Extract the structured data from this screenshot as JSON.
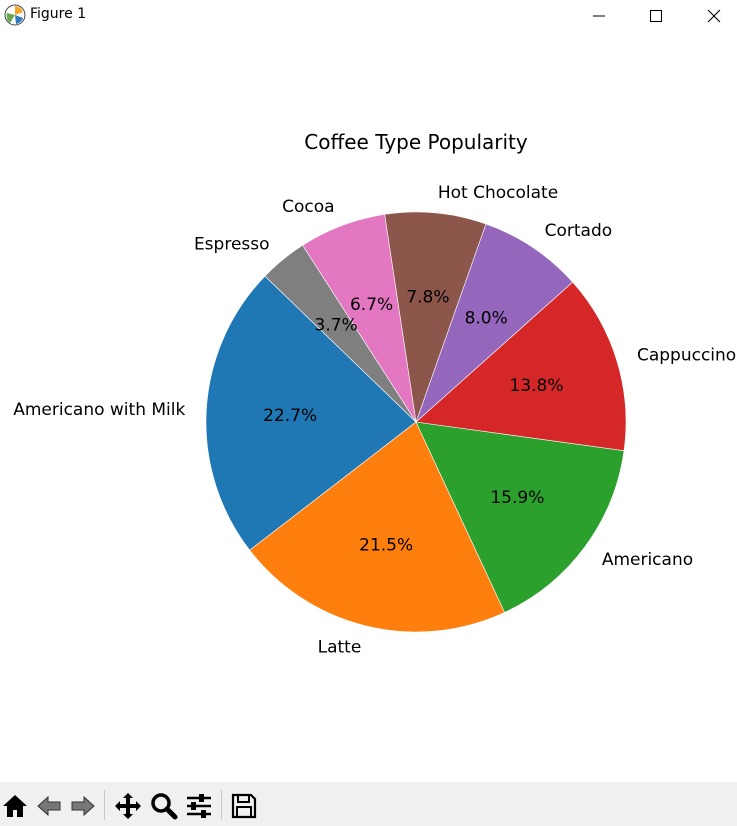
{
  "window": {
    "title": "Figure 1",
    "controls": [
      "minimize-icon",
      "maximize-icon",
      "close-icon"
    ]
  },
  "toolbar": {
    "buttons": [
      "home-icon",
      "back-icon",
      "forward-icon",
      "pan-icon",
      "zoom-icon",
      "configure-subplots-icon",
      "save-icon"
    ]
  },
  "chart_data": {
    "type": "pie",
    "title": "Coffee Type Popularity",
    "start_angle_deg": 136,
    "counterclockwise": true,
    "slices": [
      {
        "label": "Americano with Milk",
        "value": 22.7,
        "pct_label": "22.7%",
        "color": "#1f77b4"
      },
      {
        "label": "Latte",
        "value": 21.5,
        "pct_label": "21.5%",
        "color": "#ff7f0e"
      },
      {
        "label": "Americano",
        "value": 15.9,
        "pct_label": "15.9%",
        "color": "#2ca02c"
      },
      {
        "label": "Cappuccino",
        "value": 13.8,
        "pct_label": "13.8%",
        "color": "#d62728"
      },
      {
        "label": "Cortado",
        "value": 8.0,
        "pct_label": "8.0%",
        "color": "#9467bd"
      },
      {
        "label": "Hot Chocolate",
        "value": 7.8,
        "pct_label": "7.8%",
        "color": "#8c564b"
      },
      {
        "label": "Cocoa",
        "value": 6.7,
        "pct_label": "6.7%",
        "color": "#e377c2"
      },
      {
        "label": "Espresso",
        "value": 3.7,
        "pct_label": "3.7%",
        "color": "#7f7f7f"
      }
    ]
  }
}
